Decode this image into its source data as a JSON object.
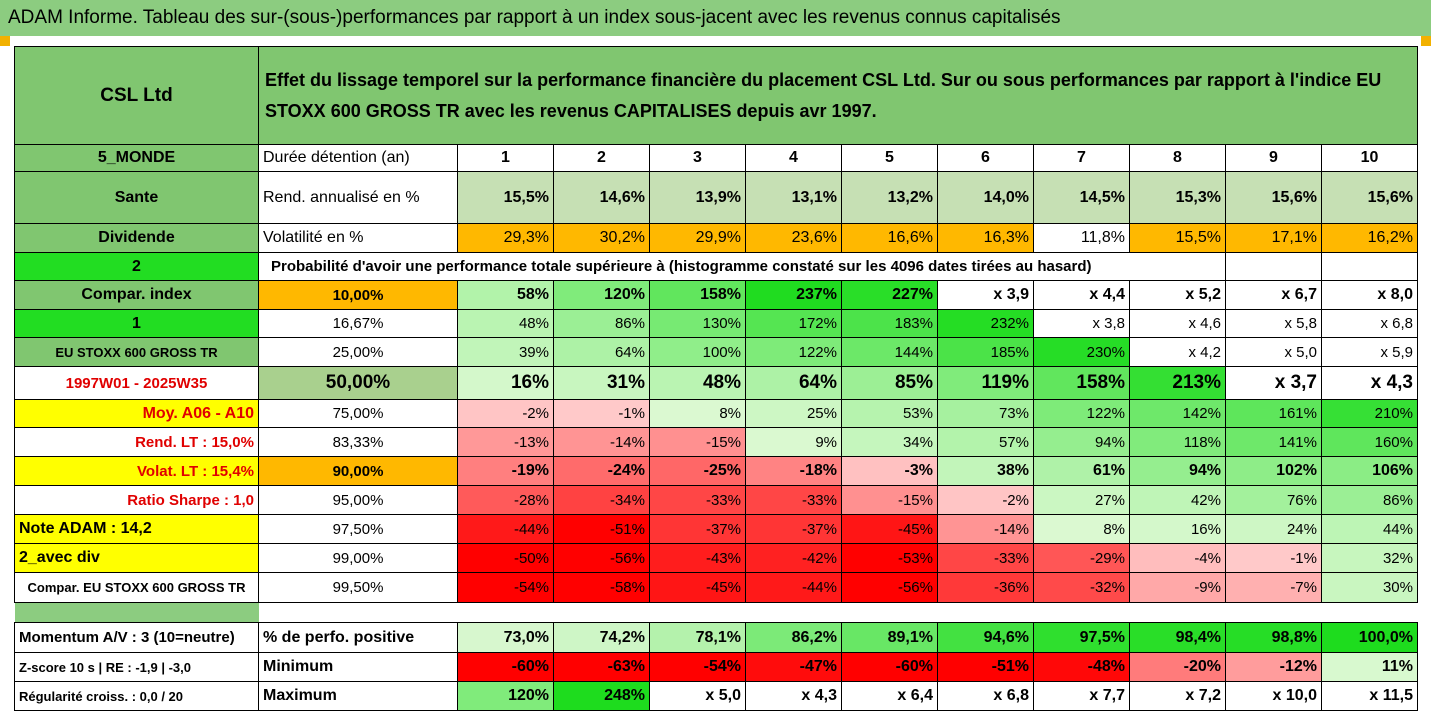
{
  "banner": "ADAM Informe. Tableau des sur-(sous-)performances par rapport à un index sous-jacent avec les revenus connus capitalisés",
  "header": {
    "company": "CSL Ltd",
    "description": "Effet du lissage temporel sur la performance financière du placement CSL Ltd. Sur ou sous performances par rapport à l'indice EU STOXX 600 GROSS TR avec les revenus CAPITALISES depuis avr 1997."
  },
  "durations": {
    "left": "5_MONDE",
    "label": "Durée détention (an)",
    "values": [
      "1",
      "2",
      "3",
      "4",
      "5",
      "6",
      "7",
      "8",
      "9",
      "10"
    ]
  },
  "returns": {
    "left": "Sante",
    "label": "Rend. annualisé en %",
    "values": [
      "15,5%",
      "14,6%",
      "13,9%",
      "13,1%",
      "13,2%",
      "14,0%",
      "14,5%",
      "15,3%",
      "15,6%",
      "15,6%"
    ]
  },
  "volatility": {
    "left": "Dividende",
    "label": "Volatilité en %",
    "values": [
      "29,3%",
      "30,2%",
      "29,9%",
      "23,6%",
      "16,6%",
      "16,3%",
      "11,8%",
      "15,5%",
      "17,1%",
      "16,2%"
    ]
  },
  "probability": {
    "left": "2",
    "title": "Probabilité d'avoir une performance totale supérieure à (histogramme constaté sur les 4096 dates tirées au hasard)"
  },
  "distribution": [
    {
      "left": "Compar. index",
      "pct": "10,00%",
      "values": [
        "58%",
        "120%",
        "158%",
        "237%",
        "227%",
        "x 3,9",
        "x 4,4",
        "x 5,2",
        "x 6,7",
        "x 8,0"
      ]
    },
    {
      "left": "1",
      "pct": "16,67%",
      "values": [
        "48%",
        "86%",
        "130%",
        "172%",
        "183%",
        "232%",
        "x 3,8",
        "x 4,6",
        "x 5,8",
        "x 6,8"
      ]
    },
    {
      "left": "EU STOXX 600 GROSS TR",
      "pct": "25,00%",
      "values": [
        "39%",
        "64%",
        "100%",
        "122%",
        "144%",
        "185%",
        "230%",
        "x 4,2",
        "x 5,0",
        "x 5,9"
      ]
    },
    {
      "left": "1997W01 - 2025W35",
      "pct": "50,00%",
      "values": [
        "16%",
        "31%",
        "48%",
        "64%",
        "85%",
        "119%",
        "158%",
        "213%",
        "x 3,7",
        "x 4,3"
      ]
    },
    {
      "left": "Moy. A06 - A10",
      "pct": "75,00%",
      "values": [
        "-2%",
        "-1%",
        "8%",
        "25%",
        "53%",
        "73%",
        "122%",
        "142%",
        "161%",
        "210%"
      ]
    },
    {
      "left": "Rend. LT :   15,0%",
      "pct": "83,33%",
      "values": [
        "-13%",
        "-14%",
        "-15%",
        "9%",
        "34%",
        "57%",
        "94%",
        "118%",
        "141%",
        "160%"
      ]
    },
    {
      "left": "Volat. LT :   15,4%",
      "pct": "90,00%",
      "values": [
        "-19%",
        "-24%",
        "-25%",
        "-18%",
        "-3%",
        "38%",
        "61%",
        "94%",
        "102%",
        "106%"
      ]
    },
    {
      "left": "Ratio Sharpe :    1,0",
      "pct": "95,00%",
      "values": [
        "-28%",
        "-34%",
        "-33%",
        "-33%",
        "-15%",
        "-2%",
        "27%",
        "42%",
        "76%",
        "86%"
      ]
    },
    {
      "left": "Note ADAM : 14,2",
      "pct": "97,50%",
      "values": [
        "-44%",
        "-51%",
        "-37%",
        "-37%",
        "-45%",
        "-14%",
        "8%",
        "16%",
        "24%",
        "44%"
      ]
    },
    {
      "left": "2_avec div",
      "pct": "99,00%",
      "values": [
        "-50%",
        "-56%",
        "-43%",
        "-42%",
        "-53%",
        "-33%",
        "-29%",
        "-4%",
        "-1%",
        "32%"
      ]
    },
    {
      "left": "Compar. EU STOXX 600 GROSS TR",
      "pct": "99,50%",
      "values": [
        "-54%",
        "-58%",
        "-45%",
        "-44%",
        "-56%",
        "-36%",
        "-32%",
        "-9%",
        "-7%",
        "30%"
      ]
    }
  ],
  "stats": [
    {
      "left": "Momentum A/V : 3 (10=neutre)",
      "label": "% de perfo. positive",
      "values": [
        "73,0%",
        "74,2%",
        "78,1%",
        "86,2%",
        "89,1%",
        "94,6%",
        "97,5%",
        "98,4%",
        "98,8%",
        "100,0%"
      ]
    },
    {
      "left": "Z-score 10 s  |  RE : -1,9  |  -3,0",
      "label": "Minimum",
      "values": [
        "-60%",
        "-63%",
        "-54%",
        "-47%",
        "-60%",
        "-51%",
        "-48%",
        "-20%",
        "-12%",
        "11%"
      ]
    },
    {
      "left": "Régularité croiss. : 0,0 / 20",
      "label": "Maximum",
      "values": [
        "120%",
        "248%",
        "x 5,0",
        "x 4,3",
        "x 6,4",
        "x 6,8",
        "x 7,7",
        "x 7,2",
        "x 10,0",
        "x 11,5"
      ]
    }
  ],
  "colors": {
    "banner": "#8ccc80",
    "header_green": "#80c670",
    "bright_green": "#22dd22",
    "orange": "#ffb800",
    "yellow": "#ffff00",
    "red_text": "#e00000",
    "pale_green": "#c6e0b4"
  }
}
